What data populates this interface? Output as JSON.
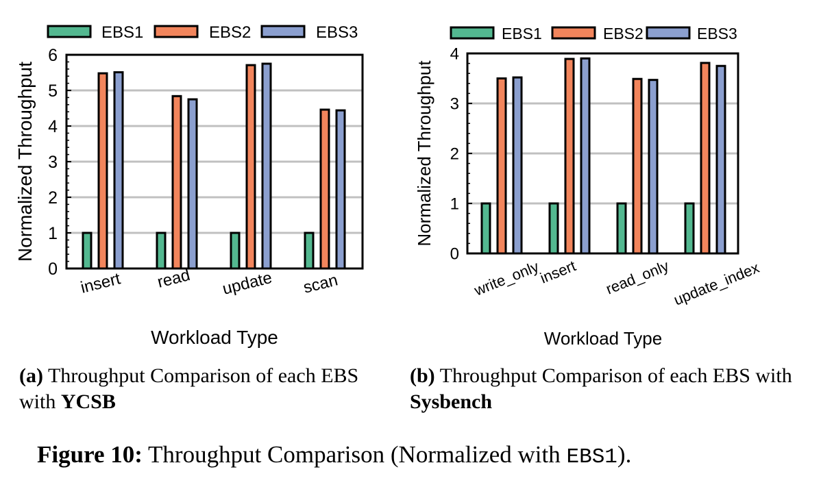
{
  "chart_data": [
    {
      "type": "bar",
      "id": "a",
      "title": "",
      "xlabel": "Workload Type",
      "ylabel": "Normalized Throughput",
      "ylim": [
        0,
        6
      ],
      "yticks": [
        "0",
        "1",
        "2",
        "3",
        "4",
        "5",
        "6"
      ],
      "grid": true,
      "legend": "top",
      "categories": [
        "insert",
        "read",
        "update",
        "scan"
      ],
      "series": [
        {
          "name": "EBS1",
          "values": [
            1,
            1,
            1,
            1
          ]
        },
        {
          "name": "EBS2",
          "values": [
            5.48,
            4.84,
            5.71,
            4.46
          ]
        },
        {
          "name": "EBS3",
          "values": [
            5.51,
            4.75,
            5.75,
            4.44
          ]
        }
      ]
    },
    {
      "type": "bar",
      "id": "b",
      "title": "",
      "xlabel": "Workload Type",
      "ylabel": "Normalized Throughput",
      "ylim": [
        0,
        4
      ],
      "yticks": [
        "0",
        "1",
        "2",
        "3",
        "4"
      ],
      "grid": true,
      "legend": "top",
      "categories": [
        "write_only",
        "insert",
        "read_only",
        "update_index"
      ],
      "series": [
        {
          "name": "EBS1",
          "values": [
            1,
            1,
            1,
            1
          ]
        },
        {
          "name": "EBS2",
          "values": [
            3.5,
            3.89,
            3.49,
            3.81
          ]
        },
        {
          "name": "EBS3",
          "values": [
            3.52,
            3.9,
            3.47,
            3.75
          ]
        }
      ]
    }
  ],
  "colors": {
    "EBS1": "#53b890",
    "EBS2": "#f2855c",
    "EBS3": "#8b9fcf",
    "grid": "#c0c0c0"
  },
  "captions": {
    "a": {
      "label": "(a)",
      "text": " Throughput Comparison of each EBS with ",
      "bold": "YCSB"
    },
    "b": {
      "label": "(b)",
      "text": " Throughput Comparison of each EBS with ",
      "bold": "Sysbench"
    },
    "figure": {
      "label": "Figure 10:",
      "text_before": " Throughput Comparison (Normalized with ",
      "mono": "EBS1",
      "text_after": ")."
    }
  }
}
